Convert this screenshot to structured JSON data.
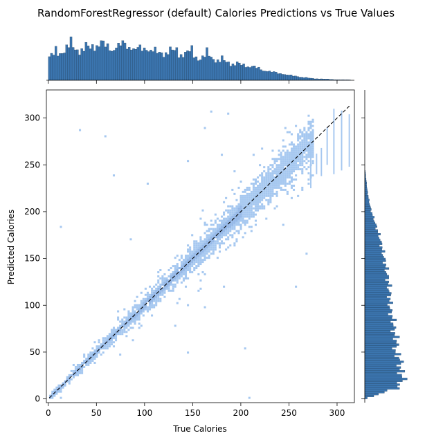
{
  "chart_data": {
    "type": "heatmap",
    "subtype": "joint-histogram",
    "title": "RandomForestRegressor (default) Calories Predictions vs True Values",
    "xlabel": "True Calories",
    "ylabel": "Predicted Calories",
    "xlim": [
      -2,
      318
    ],
    "ylim": [
      -4,
      330
    ],
    "xticks": [
      0,
      50,
      100,
      150,
      200,
      250,
      300
    ],
    "yticks": [
      0,
      50,
      100,
      150,
      200,
      250,
      300
    ],
    "reference_line": {
      "from": [
        1,
        1
      ],
      "to": [
        314,
        314
      ],
      "style": "dashed",
      "color": "#000000"
    },
    "grid": false,
    "colors": {
      "bins_light": "#a6c8f0",
      "bins_dark": "#3f7fd6",
      "marginal": "#3b75af",
      "marginal_edge": "#1f3f5f"
    },
    "x_marginal_heights": [
      0.55,
      0.62,
      0.78,
      0.72,
      0.7,
      0.84,
      0.78,
      0.72,
      0.85,
      0.7,
      0.74,
      0.68,
      0.6,
      0.69,
      0.6,
      0.65,
      0.5,
      0.58,
      0.45,
      0.42,
      0.36,
      0.34,
      0.29,
      0.22,
      0.18,
      0.14,
      0.1,
      0.07,
      0.04,
      0.03,
      0.02,
      0.01,
      0.01
    ],
    "y_marginal_heights": [
      0.05,
      0.62,
      0.78,
      0.7,
      0.72,
      0.6,
      0.65,
      0.58,
      0.58,
      0.52,
      0.5,
      0.5,
      0.48,
      0.45,
      0.42,
      0.38,
      0.34,
      0.3,
      0.24,
      0.18,
      0.12,
      0.08,
      0.05,
      0.03,
      0.01
    ]
  }
}
